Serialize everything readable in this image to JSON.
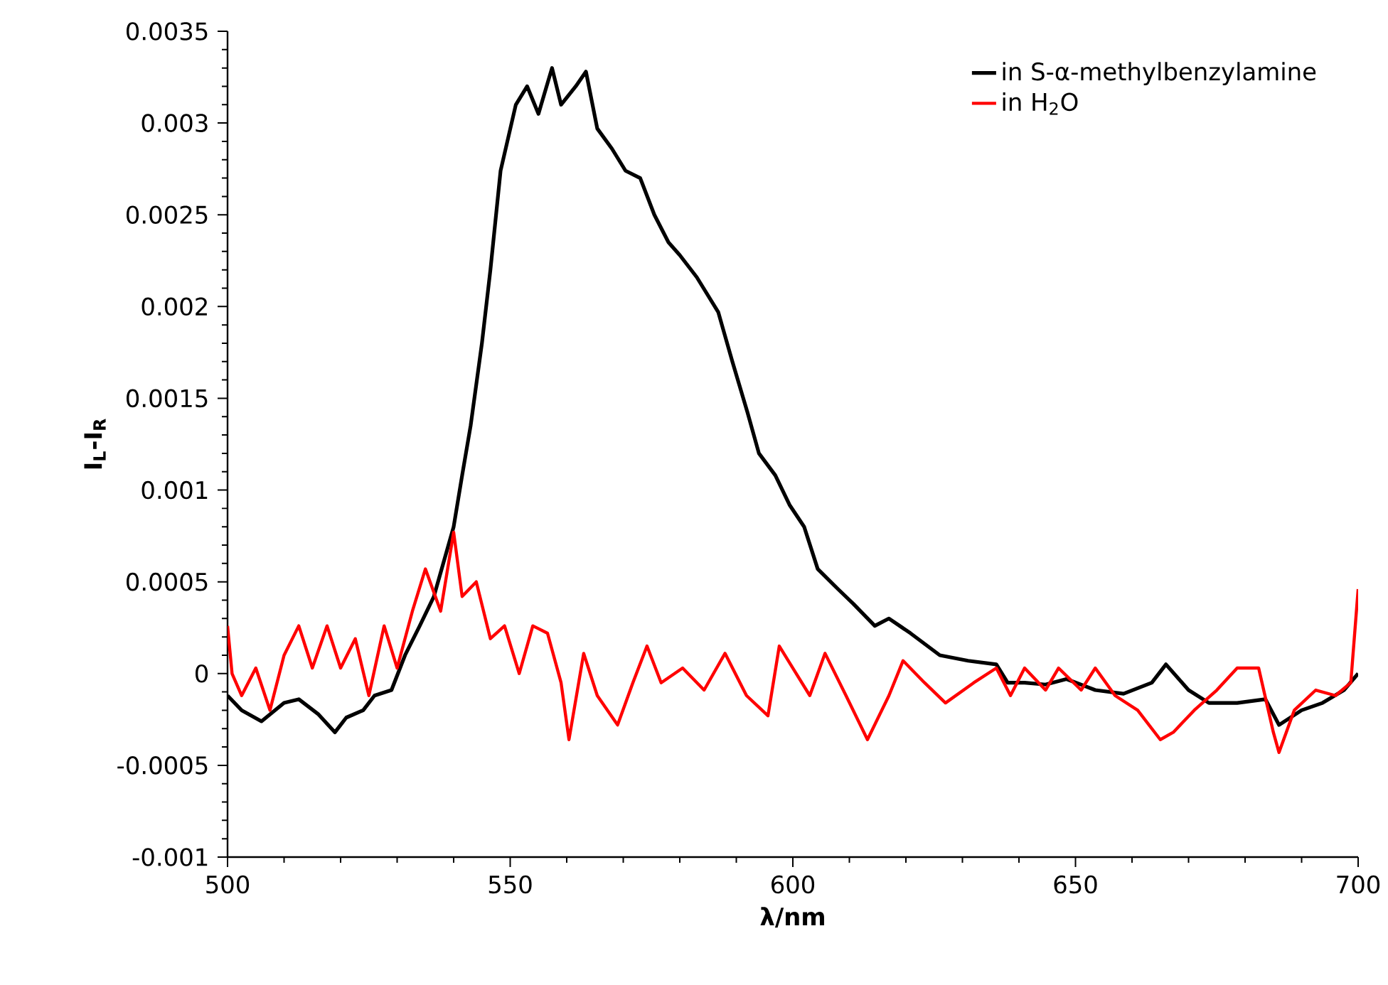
{
  "chart_data": {
    "type": "line",
    "xlabel": "λ/nm",
    "ylabel": "I$_{L}$-I$_{R}$",
    "xlim": [
      500,
      700
    ],
    "xticks": [
      500,
      550,
      600,
      650,
      700
    ],
    "ylim": [
      -0.001,
      0.0035
    ],
    "yticks": [
      -0.001,
      -0.0005,
      0,
      0.0005,
      0.001,
      0.0015,
      0.002,
      0.0025,
      0.003,
      0.0035
    ],
    "legend": "top right",
    "grid": false,
    "marker": "none",
    "line_style": "solid",
    "series": [
      {
        "name": "in S-α-methylbenzylamine",
        "color": "#000000",
        "x": [
          500,
          502.5,
          506,
          510,
          512.6,
          516,
          519,
          521,
          524,
          526,
          529,
          531.4,
          534,
          536.5,
          540,
          541.5,
          543,
          545,
          546.5,
          548.3,
          551,
          553,
          555,
          557.4,
          559,
          561.6,
          563.4,
          565.4,
          568,
          570.4,
          573,
          575.5,
          578,
          580,
          583,
          586.8,
          589.3,
          592,
          594,
          596.9,
          599.4,
          602,
          604.4,
          608,
          610.7,
          614.5,
          617,
          620.8,
          626,
          631,
          636,
          638,
          641,
          644.7,
          648.4,
          653.5,
          658.5,
          663.5,
          666,
          670,
          673.6,
          678.6,
          683.6,
          686,
          690,
          693.7,
          697.5,
          700
        ],
        "values": [
          -0.00012,
          -0.0002,
          -0.00026,
          -0.00016,
          -0.00014,
          -0.00022,
          -0.00032,
          -0.00024,
          -0.0002,
          -0.00012,
          -9e-05,
          0.0001,
          0.00026,
          0.00042,
          0.0008,
          0.00108,
          0.00135,
          0.0018,
          0.0022,
          0.00274,
          0.0031,
          0.0032,
          0.00305,
          0.0033,
          0.0031,
          0.0032,
          0.00328,
          0.00297,
          0.00286,
          0.00274,
          0.0027,
          0.0025,
          0.00235,
          0.00228,
          0.00216,
          0.00197,
          0.0017,
          0.00142,
          0.0012,
          0.00108,
          0.00092,
          0.0008,
          0.00057,
          0.00046,
          0.00038,
          0.00026,
          0.0003,
          0.00022,
          0.0001,
          7e-05,
          5e-05,
          -5e-05,
          -5e-05,
          -6e-05,
          -3e-05,
          -9e-05,
          -0.00011,
          -5e-05,
          5e-05,
          -9e-05,
          -0.00016,
          -0.00016,
          -0.00014,
          -0.00028,
          -0.0002,
          -0.00016,
          -9e-05,
          0
        ]
      },
      {
        "name": "in H$_{2}$O",
        "color": "#ff0000",
        "x": [
          500,
          500.8,
          502.5,
          505,
          507.5,
          510,
          512.6,
          515,
          517.6,
          520,
          522.6,
          525,
          527.7,
          530,
          532.7,
          535,
          537.7,
          540,
          541.5,
          544,
          546.5,
          549,
          551.6,
          554,
          556.6,
          559,
          560.4,
          563,
          565.4,
          569,
          571.7,
          574.2,
          576.7,
          580.5,
          584.3,
          588,
          591.8,
          595.6,
          597.6,
          600,
          603,
          605.7,
          609.4,
          613.2,
          617,
          619.5,
          623.3,
          627,
          632,
          636,
          638.5,
          641,
          644.7,
          647,
          651,
          653.5,
          657,
          661,
          665,
          667.3,
          671,
          675,
          678.6,
          682.4,
          685,
          686,
          688.7,
          692.5,
          696,
          698.7,
          700
        ],
        "values": [
          0.00026,
          0,
          -0.00012,
          3e-05,
          -0.0002,
          0.0001,
          0.00026,
          3e-05,
          0.00026,
          3e-05,
          0.00019,
          -0.00012,
          0.00026,
          3e-05,
          0.00034,
          0.00057,
          0.00034,
          0.00077,
          0.00042,
          0.0005,
          0.00019,
          0.00026,
          0,
          0.00026,
          0.00022,
          -5e-05,
          -0.00036,
          0.00011,
          -0.00012,
          -0.00028,
          -5e-05,
          0.00015,
          -5e-05,
          3e-05,
          -9e-05,
          0.00011,
          -0.00012,
          -0.00023,
          0.00015,
          3e-05,
          -0.00012,
          0.00011,
          -0.00012,
          -0.00036,
          -0.00012,
          7e-05,
          -5e-05,
          -0.00016,
          -5e-05,
          3e-05,
          -0.00012,
          3e-05,
          -9e-05,
          3e-05,
          -9e-05,
          3e-05,
          -0.00012,
          -0.0002,
          -0.00036,
          -0.00032,
          -0.0002,
          -9e-05,
          3e-05,
          3e-05,
          -0.00032,
          -0.00043,
          -0.0002,
          -9e-05,
          -0.00012,
          -5e-05,
          0.00046
        ]
      }
    ]
  }
}
